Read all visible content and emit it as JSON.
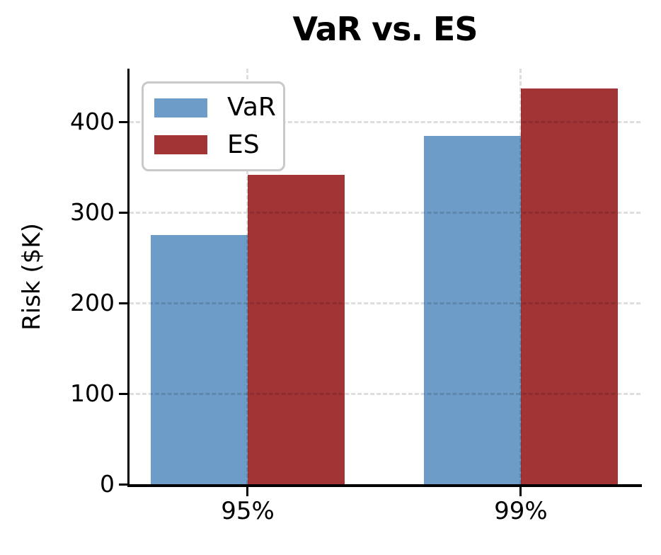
{
  "chart_data": {
    "type": "bar",
    "title": "VaR vs. ES",
    "ylabel": "Risk ($K)",
    "xlabel": "",
    "categories": [
      "95%",
      "99%"
    ],
    "series": [
      {
        "name": "VaR",
        "color": "#6C9CC7",
        "values": [
          275,
          385
        ]
      },
      {
        "name": "ES",
        "color": "#A33436",
        "values": [
          342,
          437
        ]
      }
    ],
    "ylim": [
      0,
      459
    ],
    "yticks": [
      0,
      100,
      200,
      300,
      400
    ],
    "grid": {
      "horizontal": true,
      "vertical": true,
      "style": "dashed",
      "color": "rgba(0,0,0,0.13)"
    },
    "legend": {
      "position": "upper-left"
    },
    "colors": {
      "background": "#ffffff",
      "text": "#000000",
      "spine": "#000000",
      "legend_border": "#c9c9c9"
    }
  }
}
